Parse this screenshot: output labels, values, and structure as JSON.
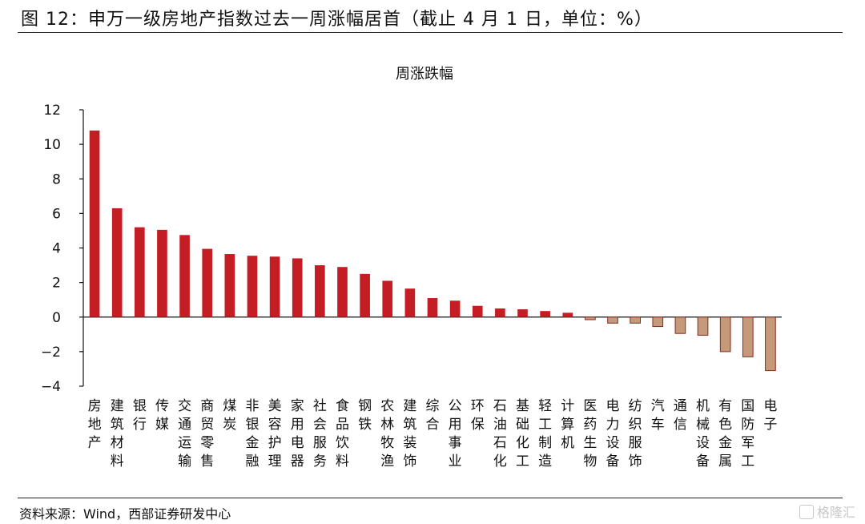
{
  "figure": {
    "title": "图 12：申万一级房地产指数过去一周涨幅居首（截止 4 月 1 日，单位：%）",
    "source": "资料来源：Wind，西部证券研发中心",
    "watermark": "格隆汇"
  },
  "chart_data": {
    "type": "bar",
    "title": "周涨跌幅",
    "xlabel": "",
    "ylabel": "",
    "ylim": [
      -4,
      12
    ],
    "yticks": [
      -4,
      -2,
      0,
      2,
      4,
      6,
      8,
      10,
      12
    ],
    "grid": false,
    "legend": "none",
    "colors": {
      "positive": "#c41e24",
      "negative": "#c49a7a",
      "negative_stroke": "#8b2a1e"
    },
    "categories": [
      "房地产",
      "建筑材料",
      "银行",
      "传媒",
      "交通运输",
      "商贸零售",
      "煤炭",
      "非银金融",
      "美容护理",
      "家用电器",
      "社会服务",
      "食品饮料",
      "钢铁",
      "农林牧渔",
      "建筑装饰",
      "综合",
      "公用事业",
      "环保",
      "石油石化",
      "基础化工",
      "轻工制造",
      "计算机",
      "医药生物",
      "电力设备",
      "纺织服饰",
      "汽车",
      "通信",
      "机械设备",
      "有色金属",
      "国防军工",
      "电子"
    ],
    "values": [
      10.8,
      6.3,
      5.2,
      5.05,
      4.75,
      3.95,
      3.65,
      3.55,
      3.5,
      3.4,
      3.0,
      2.9,
      2.5,
      2.1,
      1.65,
      1.1,
      0.95,
      0.65,
      0.5,
      0.45,
      0.35,
      0.25,
      -0.15,
      -0.35,
      -0.35,
      -0.55,
      -0.95,
      -1.05,
      -2.0,
      -2.3,
      -3.1
    ]
  }
}
